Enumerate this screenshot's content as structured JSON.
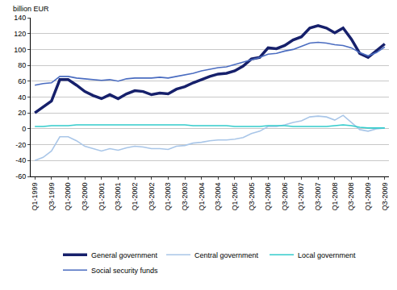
{
  "chart_data": {
    "type": "line",
    "y_label": "billion EUR",
    "categories": [
      "Q1-1999",
      null,
      "Q3-1999",
      null,
      "Q1-2000",
      null,
      "Q3-2000",
      null,
      "Q1-2001",
      null,
      "Q3-2001",
      null,
      "Q1-2002",
      null,
      "Q3-2002",
      null,
      "Q1-2003",
      null,
      "Q3-2003",
      null,
      "Q1-2004",
      null,
      "Q3-2004",
      null,
      "Q1-2005",
      null,
      "Q3-2005",
      null,
      "Q1-2006",
      null,
      "Q3-2006",
      null,
      "Q1-2007",
      null,
      "Q3-2007",
      null,
      "Q1-2008",
      null,
      "Q3-2008",
      null,
      "Q1-2009",
      null,
      "Q3-2009"
    ],
    "series": [
      {
        "name": "General government",
        "color": "#16206b",
        "values": [
          20,
          27,
          35,
          62,
          62,
          55,
          47,
          42,
          38,
          43,
          38,
          44,
          48,
          47,
          43,
          45,
          44,
          50,
          53,
          58,
          62,
          66,
          69,
          70,
          73,
          79,
          88,
          90,
          102,
          101,
          105,
          112,
          116,
          127,
          130,
          127,
          121,
          127,
          113,
          95,
          90,
          98,
          107
        ]
      },
      {
        "name": "Central government",
        "color": "#a9c6e8",
        "values": [
          -40,
          -36,
          -28,
          -10,
          -10,
          -15,
          -22,
          -25,
          -28,
          -25,
          -27,
          -24,
          -22,
          -23,
          -25,
          -25,
          -26,
          -22,
          -21,
          -18,
          -17,
          -15,
          -14,
          -14,
          -13,
          -11,
          -6,
          -3,
          3,
          3,
          5,
          8,
          10,
          15,
          16,
          15,
          11,
          17,
          8,
          -1,
          -3,
          0,
          1
        ]
      },
      {
        "name": "Local government",
        "color": "#33cccc",
        "values": [
          3,
          3,
          4,
          4,
          4,
          5,
          5,
          5,
          5,
          5,
          5,
          5,
          5,
          5,
          5,
          5,
          5,
          5,
          5,
          4,
          4,
          4,
          4,
          4,
          3,
          3,
          3,
          3,
          4,
          4,
          4,
          3,
          3,
          3,
          3,
          3,
          4,
          5,
          4,
          2,
          1,
          1,
          1
        ]
      },
      {
        "name": "Social security funds",
        "color": "#4a6cc0",
        "values": [
          55,
          57,
          58,
          66,
          66,
          64,
          63,
          62,
          61,
          62,
          60,
          63,
          64,
          64,
          64,
          65,
          64,
          66,
          68,
          70,
          73,
          75,
          77,
          78,
          81,
          84,
          87,
          90,
          94,
          95,
          98,
          100,
          104,
          108,
          109,
          108,
          106,
          105,
          102,
          96,
          92,
          96,
          103
        ]
      }
    ],
    "ylim": [
      -60,
      140
    ],
    "yticks": [
      -60,
      -40,
      -20,
      0,
      20,
      40,
      60,
      80,
      100,
      120,
      140
    ],
    "grid": true,
    "legend": "bottom"
  }
}
